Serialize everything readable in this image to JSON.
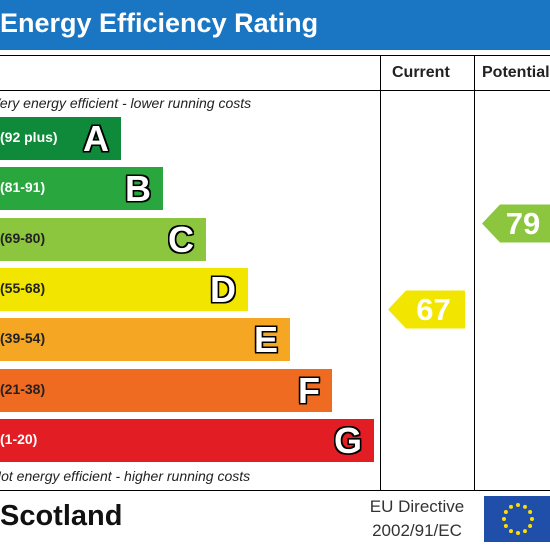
{
  "header": {
    "title": "Energy Efficiency Rating"
  },
  "columns": {
    "current": "Current",
    "potential": "Potential"
  },
  "notes": {
    "top": "Very energy efficient - lower running costs",
    "bottom": "Not energy efficient - higher running costs"
  },
  "footer": {
    "country": "Scotland",
    "directive_line1": "EU Directive",
    "directive_line2": "2002/91/EC"
  },
  "chart_data": {
    "type": "bar",
    "title": "Energy Efficiency Rating",
    "bands": [
      {
        "letter": "A",
        "range": "(92 plus)",
        "min": 92,
        "max": 100,
        "color": "#0f8a3a",
        "range_color": "#ffffff"
      },
      {
        "letter": "B",
        "range": "(81-91)",
        "min": 81,
        "max": 91,
        "color": "#2aa63e",
        "range_color": "#ffffff"
      },
      {
        "letter": "C",
        "range": "(69-80)",
        "min": 69,
        "max": 80,
        "color": "#8cc63f",
        "range_color": "#222222"
      },
      {
        "letter": "D",
        "range": "(55-68)",
        "min": 55,
        "max": 68,
        "color": "#f2e600",
        "range_color": "#222222"
      },
      {
        "letter": "E",
        "range": "(39-54)",
        "min": 39,
        "max": 54,
        "color": "#f5a623",
        "range_color": "#222222"
      },
      {
        "letter": "F",
        "range": "(21-38)",
        "min": 21,
        "max": 38,
        "color": "#ef6b22",
        "range_color": "#222222"
      },
      {
        "letter": "G",
        "range": "(1-20)",
        "min": 1,
        "max": 20,
        "color": "#e31d24",
        "range_color": "#ffffff"
      }
    ],
    "current": {
      "value": 67,
      "band": "D",
      "color": "#f2e600"
    },
    "potential": {
      "value": 79,
      "band": "C",
      "color": "#8cc63f"
    }
  },
  "colors": {
    "header_bg": "#1a76c2",
    "eu_flag_bg": "#1f4fa8",
    "eu_star": "#ffdd00"
  },
  "icons": {
    "eu_flag": "eu-flag-icon"
  }
}
